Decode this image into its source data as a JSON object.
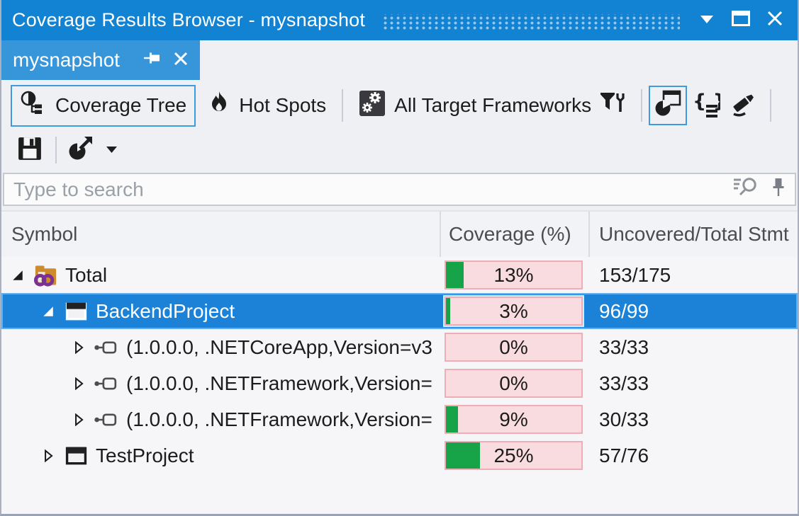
{
  "window": {
    "title": "Coverage Results Browser - mysnapshot"
  },
  "tab": {
    "label": "mysnapshot"
  },
  "toolbar": {
    "coverage_tree_label": "Coverage Tree",
    "hot_spots_label": "Hot Spots",
    "frameworks_label": "All Target Frameworks"
  },
  "search": {
    "placeholder": "Type to search"
  },
  "table": {
    "columns": [
      "Symbol",
      "Coverage (%)",
      "Uncovered/Total Stmt"
    ],
    "rows": [
      {
        "label": "Total",
        "icon": "solution-icon",
        "level": 0,
        "expander": "expanded",
        "coverage_pct": 13,
        "coverage_label": "13%",
        "uncovered_total": "153/175",
        "selected": false
      },
      {
        "label": "BackendProject",
        "icon": "project-icon",
        "level": 1,
        "expander": "expanded",
        "coverage_pct": 3,
        "coverage_label": "3%",
        "uncovered_total": "96/99",
        "selected": true
      },
      {
        "label": "(1.0.0.0, .NETCoreApp,Version=v3",
        "icon": "framework-icon",
        "level": 2,
        "expander": "collapsed",
        "coverage_pct": 0,
        "coverage_label": "0%",
        "uncovered_total": "33/33",
        "selected": false
      },
      {
        "label": "(1.0.0.0, .NETFramework,Version=",
        "icon": "framework-icon",
        "level": 2,
        "expander": "collapsed",
        "coverage_pct": 0,
        "coverage_label": "0%",
        "uncovered_total": "33/33",
        "selected": false
      },
      {
        "label": "(1.0.0.0, .NETFramework,Version=",
        "icon": "framework-icon",
        "level": 2,
        "expander": "collapsed",
        "coverage_pct": 9,
        "coverage_label": "9%",
        "uncovered_total": "30/33",
        "selected": false
      },
      {
        "label": "TestProject",
        "icon": "project-icon",
        "level": 1,
        "expander": "collapsed",
        "coverage_pct": 25,
        "coverage_label": "25%",
        "uncovered_total": "57/76",
        "selected": false
      }
    ]
  },
  "colors": {
    "titlebar": "#1282d3",
    "tab": "#3795da",
    "selection": "#1b82d8",
    "green": "#17a449",
    "bar-bg": "#f9dce0",
    "bar-border": "#efaeb5"
  }
}
